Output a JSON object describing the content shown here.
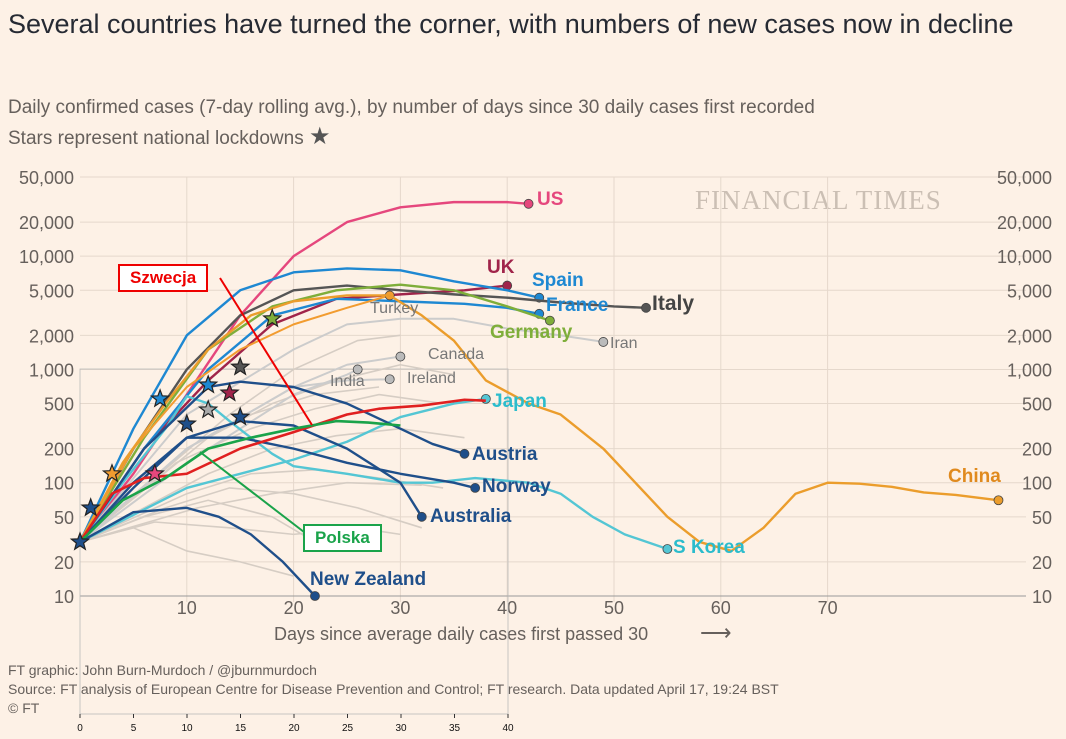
{
  "title": "Several countries have turned the corner, with numbers of new cases now in decline",
  "subtitle_line1": "Daily confirmed cases (7-day rolling avg.), by number of days since 30 daily cases first recorded",
  "subtitle_line2": "Stars represent national lockdowns",
  "star_glyph": "★",
  "watermark": "FINANCIAL TIMES",
  "footer": {
    "credit": "FT graphic: John Burn-Murdoch / @jburnmurdoch",
    "source": "Source: FT analysis of European Centre for Disease Prevention and Control; FT research. Data updated April 17, 19:24 BST",
    "copyright": "© FT"
  },
  "annotations": {
    "sweden": "Szwecja",
    "poland": "Polska"
  },
  "chart_data": [
    {
      "type": "line",
      "scale": "log",
      "xlabel": "Days since average daily cases first passed 30",
      "xlim": [
        0,
        86
      ],
      "ylim": [
        10,
        50000
      ],
      "y_ticks": [
        10,
        20,
        50,
        100,
        200,
        500,
        1000,
        2000,
        5000,
        10000,
        20000,
        50000
      ],
      "y_tick_labels": [
        "10",
        "20",
        "50",
        "100",
        "200",
        "500",
        "1,000",
        "2,000",
        "5,000",
        "10,000",
        "20,000",
        "50,000"
      ],
      "x_ticks": [
        10,
        20,
        30,
        40,
        50,
        60,
        70
      ],
      "arrow": "⟶",
      "series": [
        {
          "name": "US",
          "color": "#e5477d",
          "label_color": "#e5477d",
          "bold": true,
          "end_dot": true,
          "points": [
            [
              0,
              30
            ],
            [
              5,
              120
            ],
            [
              10,
              600
            ],
            [
              15,
              3000
            ],
            [
              20,
              10000
            ],
            [
              25,
              20000
            ],
            [
              30,
              27000
            ],
            [
              35,
              30000
            ],
            [
              40,
              30000
            ],
            [
              42,
              29000
            ]
          ]
        },
        {
          "name": "UK",
          "color": "#a0244a",
          "label_color": "#a0244a",
          "bold": true,
          "end_dot": true,
          "points": [
            [
              0,
              30
            ],
            [
              6,
              200
            ],
            [
              12,
              800
            ],
            [
              18,
              2500
            ],
            [
              24,
              4200
            ],
            [
              30,
              4600
            ],
            [
              36,
              5000
            ],
            [
              40,
              5500
            ]
          ]
        },
        {
          "name": "Spain",
          "color": "#1e88d2",
          "label_color": "#1e88d2",
          "bold": true,
          "end_dot": true,
          "points": [
            [
              0,
              30
            ],
            [
              5,
              300
            ],
            [
              10,
              2000
            ],
            [
              15,
              5000
            ],
            [
              20,
              7200
            ],
            [
              25,
              7800
            ],
            [
              30,
              7500
            ],
            [
              35,
              6000
            ],
            [
              40,
              5000
            ],
            [
              43,
              4300
            ]
          ]
        },
        {
          "name": "France",
          "color": "#1e88d2",
          "label_color": "#1e88d2",
          "bold": true,
          "end_dot": true,
          "points": [
            [
              0,
              30
            ],
            [
              6,
              200
            ],
            [
              12,
              1000
            ],
            [
              18,
              3000
            ],
            [
              24,
              4200
            ],
            [
              30,
              4000
            ],
            [
              36,
              3800
            ],
            [
              40,
              3500
            ],
            [
              43,
              3100
            ]
          ]
        },
        {
          "name": "Italy",
          "color": "#555555",
          "label_color": "#444444",
          "bold": true,
          "end_dot": true,
          "points": [
            [
              0,
              30
            ],
            [
              5,
              200
            ],
            [
              10,
              1000
            ],
            [
              15,
              3000
            ],
            [
              20,
              5000
            ],
            [
              25,
              5500
            ],
            [
              30,
              5000
            ],
            [
              35,
              4600
            ],
            [
              40,
              4300
            ],
            [
              45,
              3900
            ],
            [
              50,
              3600
            ],
            [
              53,
              3500
            ]
          ]
        },
        {
          "name": "Germany",
          "color": "#7fae3a",
          "label_color": "#7fae3a",
          "bold": true,
          "end_dot": true,
          "points": [
            [
              0,
              30
            ],
            [
              6,
              250
            ],
            [
              12,
              1500
            ],
            [
              18,
              3600
            ],
            [
              24,
              5000
            ],
            [
              30,
              5600
            ],
            [
              35,
              5000
            ],
            [
              40,
              3600
            ],
            [
              44,
              2700
            ]
          ]
        },
        {
          "name": "Turkey",
          "color": "#f29c30",
          "label_color": "#777777",
          "bold": false,
          "end_dot": true,
          "points": [
            [
              0,
              30
            ],
            [
              5,
              200
            ],
            [
              10,
              700
            ],
            [
              15,
              1500
            ],
            [
              20,
              2500
            ],
            [
              25,
              3500
            ],
            [
              29,
              4500
            ]
          ]
        },
        {
          "name": "Iran",
          "color": "#cccccc",
          "label_color": "#777777",
          "bold": false,
          "end_dot": true,
          "points": [
            [
              0,
              30
            ],
            [
              10,
              400
            ],
            [
              20,
              1500
            ],
            [
              25,
              2500
            ],
            [
              30,
              2800
            ],
            [
              35,
              2800
            ],
            [
              40,
              2300
            ],
            [
              45,
              2000
            ],
            [
              49,
              1750
            ]
          ]
        },
        {
          "name": "Canada",
          "color": "#cccccc",
          "label_color": "#777777",
          "bold": false,
          "end_dot": true,
          "points": [
            [
              0,
              30
            ],
            [
              10,
              200
            ],
            [
              20,
              700
            ],
            [
              25,
              1100
            ],
            [
              30,
              1300
            ]
          ]
        },
        {
          "name": "India",
          "color": "#cccccc",
          "label_color": "#777777",
          "bold": false,
          "end_dot": true,
          "points": [
            [
              0,
              30
            ],
            [
              10,
              150
            ],
            [
              20,
              600
            ],
            [
              25,
              900
            ],
            [
              26,
              1000
            ]
          ]
        },
        {
          "name": "Ireland",
          "color": "#cccccc",
          "label_color": "#777777",
          "bold": false,
          "end_dot": true,
          "points": [
            [
              0,
              30
            ],
            [
              10,
              200
            ],
            [
              20,
              700
            ],
            [
              25,
              800
            ],
            [
              29,
              820
            ]
          ]
        },
        {
          "name": "Japan",
          "color": "#54c6d4",
          "label_color": "#2bbccc",
          "bold": true,
          "end_dot": true,
          "points": [
            [
              0,
              30
            ],
            [
              10,
              90
            ],
            [
              20,
              160
            ],
            [
              25,
              230
            ],
            [
              30,
              380
            ],
            [
              35,
              500
            ],
            [
              38,
              550
            ]
          ]
        },
        {
          "name": "China",
          "color": "#eb9d2c",
          "label_color": "#e08a1e",
          "bold": true,
          "end_dot": true,
          "points": [
            [
              0,
              30
            ],
            [
              4,
              150
            ],
            [
              8,
              500
            ],
            [
              12,
              1500
            ],
            [
              16,
              3000
            ],
            [
              20,
              4000
            ],
            [
              25,
              4500
            ],
            [
              29,
              4500
            ],
            [
              32,
              3000
            ],
            [
              35,
              1800
            ],
            [
              38,
              800
            ],
            [
              42,
              500
            ],
            [
              45,
              400
            ],
            [
              49,
              200
            ],
            [
              52,
              100
            ],
            [
              55,
              50
            ],
            [
              58,
              30
            ],
            [
              61,
              25
            ],
            [
              64,
              40
            ],
            [
              67,
              80
            ],
            [
              70,
              100
            ],
            [
              73,
              98
            ],
            [
              76,
              92
            ],
            [
              79,
              82
            ],
            [
              82,
              78
            ],
            [
              85,
              72
            ],
            [
              86,
              70
            ]
          ]
        },
        {
          "name": "S Korea",
          "color": "#54c6d4",
          "label_color": "#2bbccc",
          "bold": true,
          "end_dot": true,
          "points": [
            [
              0,
              30
            ],
            [
              4,
              100
            ],
            [
              8,
              300
            ],
            [
              10,
              580
            ],
            [
              12,
              500
            ],
            [
              14,
              350
            ],
            [
              16,
              250
            ],
            [
              18,
              180
            ],
            [
              20,
              140
            ],
            [
              25,
              120
            ],
            [
              30,
              100
            ],
            [
              33,
              100
            ],
            [
              37,
              110
            ],
            [
              42,
              100
            ],
            [
              45,
              80
            ],
            [
              48,
              50
            ],
            [
              51,
              35
            ],
            [
              55,
              26
            ]
          ]
        },
        {
          "name": "Austria",
          "color": "#1f4f8a",
          "label_color": "#1f4f8a",
          "bold": true,
          "end_dot": true,
          "points": [
            [
              0,
              30
            ],
            [
              6,
              200
            ],
            [
              12,
              700
            ],
            [
              15,
              780
            ],
            [
              20,
              700
            ],
            [
              25,
              500
            ],
            [
              30,
              300
            ],
            [
              33,
              220
            ],
            [
              36,
              180
            ]
          ]
        },
        {
          "name": "Norway",
          "color": "#1f4f8a",
          "label_color": "#1f4f8a",
          "bold": true,
          "end_dot": true,
          "points": [
            [
              0,
              30
            ],
            [
              5,
              100
            ],
            [
              10,
              250
            ],
            [
              15,
              250
            ],
            [
              20,
              200
            ],
            [
              25,
              150
            ],
            [
              30,
              120
            ],
            [
              35,
              100
            ],
            [
              37,
              90
            ]
          ]
        },
        {
          "name": "Australia",
          "color": "#1f4f8a",
          "label_color": "#1f4f8a",
          "bold": true,
          "end_dot": true,
          "points": [
            [
              0,
              30
            ],
            [
              5,
              90
            ],
            [
              10,
              250
            ],
            [
              15,
              350
            ],
            [
              20,
              320
            ],
            [
              25,
              200
            ],
            [
              30,
              100
            ],
            [
              32,
              50
            ]
          ]
        },
        {
          "name": "New Zealand",
          "color": "#1f4f8a",
          "label_color": "#1f4f8a",
          "bold": true,
          "end_dot": true,
          "points": [
            [
              0,
              30
            ],
            [
              5,
              55
            ],
            [
              10,
              60
            ],
            [
              13,
              50
            ],
            [
              16,
              35
            ],
            [
              19,
              20
            ],
            [
              22,
              10
            ]
          ]
        },
        {
          "name": "",
          "color": "#e02020",
          "label_color": "#e02020",
          "bold": false,
          "end_dot": false,
          "points": [
            [
              0,
              30
            ],
            [
              3,
              80
            ],
            [
              6,
              110
            ],
            [
              10,
              120
            ],
            [
              15,
              200
            ],
            [
              20,
              280
            ],
            [
              25,
              400
            ],
            [
              28,
              450
            ],
            [
              32,
              480
            ],
            [
              36,
              540
            ],
            [
              38,
              530
            ]
          ]
        },
        {
          "name": "",
          "color": "#1aa34a",
          "label_color": "#1aa34a",
          "bold": false,
          "end_dot": false,
          "points": [
            [
              0,
              30
            ],
            [
              4,
              70
            ],
            [
              8,
              110
            ],
            [
              12,
              200
            ],
            [
              16,
              250
            ],
            [
              20,
              300
            ],
            [
              24,
              350
            ],
            [
              27,
              340
            ],
            [
              30,
              320
            ]
          ]
        }
      ],
      "stars": [
        {
          "day": 0,
          "value": 30,
          "color": "#1f4f8a"
        },
        {
          "day": 1,
          "value": 60,
          "color": "#1f4f8a"
        },
        {
          "day": 3,
          "value": 120,
          "color": "#f29c30"
        },
        {
          "day": 7,
          "value": 120,
          "color": "#e5477d"
        },
        {
          "day": 10,
          "value": 330,
          "color": "#1f4f8a"
        },
        {
          "day": 7.5,
          "value": 550,
          "color": "#1e88d2"
        },
        {
          "day": 12,
          "value": 730,
          "color": "#1e88d2"
        },
        {
          "day": 12,
          "value": 440,
          "color": "#aaaaaa"
        },
        {
          "day": 14,
          "value": 620,
          "color": "#a0244a"
        },
        {
          "day": 15,
          "value": 1050,
          "color": "#555555"
        },
        {
          "day": 15,
          "value": 380,
          "color": "#1f4f8a"
        },
        {
          "day": 18,
          "value": 2800,
          "color": "#7fae3a"
        }
      ]
    },
    {
      "type": "line",
      "note": "small inset axis at bottom",
      "x_ticks": [
        0,
        5,
        10,
        15,
        20,
        25,
        30,
        35,
        40
      ]
    }
  ]
}
